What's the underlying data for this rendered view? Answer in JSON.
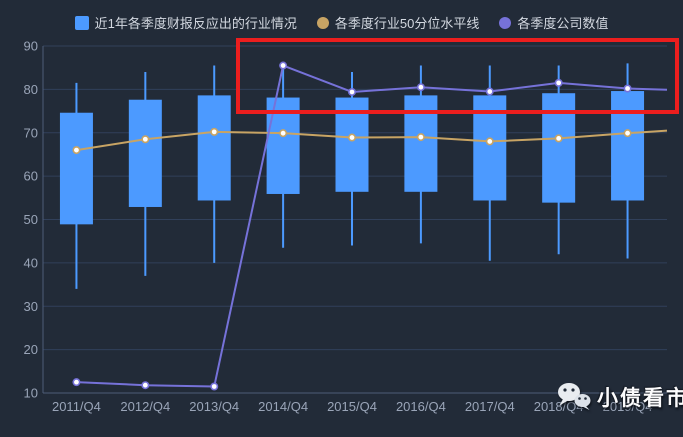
{
  "colors": {
    "background": "#222b38",
    "grid_line": "#31405a",
    "axis_line": "#4d5d78",
    "axis_label": "#9aa5b8",
    "highlight_red": "#ec1e1e",
    "marker_fill": "#ffffff"
  },
  "chart_data": {
    "type": "candlestick",
    "title": "",
    "xlabel": "",
    "ylabel": "",
    "categories": [
      "2011/Q4",
      "2012/Q4",
      "2013/Q4",
      "2014/Q4",
      "2015/Q4",
      "2016/Q4",
      "2017/Q4",
      "2018/Q4",
      "2019/Q4"
    ],
    "ylim": [
      10,
      90
    ],
    "yticks": [
      10,
      20,
      30,
      40,
      50,
      60,
      70,
      80,
      90
    ],
    "grid": true,
    "legend_position": "top",
    "series": [
      {
        "name": "近1年各季度财报反应出的行业情况",
        "type": "box",
        "color": "#4c9aff",
        "border": "#4c9aff",
        "boxes_low_q1_q3_high": [
          [
            34.0,
            49.0,
            74.5,
            81.5
          ],
          [
            37.0,
            53.0,
            77.5,
            84.0
          ],
          [
            40.0,
            54.5,
            78.5,
            85.5
          ],
          [
            43.5,
            56.0,
            78.0,
            85.0
          ],
          [
            44.0,
            56.5,
            78.0,
            84.0
          ],
          [
            44.5,
            56.5,
            78.5,
            85.5
          ],
          [
            40.5,
            54.5,
            78.5,
            85.5
          ],
          [
            42.0,
            54.0,
            79.0,
            85.5
          ],
          [
            41.0,
            54.5,
            79.5,
            86.0
          ]
        ]
      },
      {
        "name": "各季度行业50分位水平线",
        "type": "line",
        "color": "#c8a464",
        "values": [
          66.0,
          68.5,
          70.2,
          69.9,
          68.9,
          69.0,
          68.0,
          68.7,
          69.9
        ],
        "edge_value": 70.5
      },
      {
        "name": "各季度公司数值",
        "type": "line",
        "color": "#7672d9",
        "values": [
          12.5,
          11.8,
          11.5,
          85.5,
          79.4,
          80.5,
          79.5,
          81.5,
          80.2
        ],
        "edge_value": 79.9
      }
    ]
  },
  "annotations": {
    "highlight_rectangle": {
      "color": "#ec1e1e",
      "covers": "quarterly company values from 2014/Q4 to 2019/Q4"
    }
  },
  "watermark": {
    "icon": "wechat-icon",
    "text": "小债看市"
  }
}
